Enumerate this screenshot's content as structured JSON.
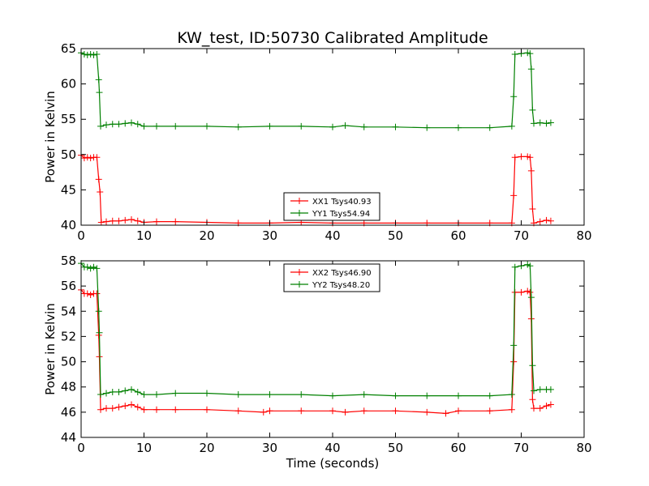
{
  "figure": {
    "title": "KW_test, ID:50730 Calibrated Amplitude"
  },
  "chart_data": [
    {
      "type": "line",
      "xlabel": "",
      "ylabel": "Power in Kelvin",
      "xlim": [
        0,
        80
      ],
      "ylim": [
        40,
        65
      ],
      "xticks": [
        0,
        10,
        20,
        30,
        40,
        50,
        60,
        70,
        80
      ],
      "yticks": [
        40,
        45,
        50,
        55,
        60,
        65
      ],
      "legend_position": "lower-center",
      "series": [
        {
          "name": "XX1 Tsys40.93",
          "color": "#ff0000",
          "points": [
            [
              0.0,
              49.9
            ],
            [
              0.5,
              49.5
            ],
            [
              1.0,
              49.6
            ],
            [
              1.5,
              49.5
            ],
            [
              2.0,
              49.6
            ],
            [
              2.5,
              49.6
            ],
            [
              2.8,
              46.5
            ],
            [
              3.0,
              44.7
            ],
            [
              3.2,
              40.4
            ],
            [
              4,
              40.5
            ],
            [
              5,
              40.6
            ],
            [
              6,
              40.6
            ],
            [
              7,
              40.7
            ],
            [
              8,
              40.8
            ],
            [
              9,
              40.6
            ],
            [
              10,
              40.4
            ],
            [
              12,
              40.5
            ],
            [
              15,
              40.5
            ],
            [
              20,
              40.4
            ],
            [
              25,
              40.3
            ],
            [
              30,
              40.3
            ],
            [
              35,
              40.4
            ],
            [
              40,
              40.3
            ],
            [
              45,
              40.3
            ],
            [
              50,
              40.3
            ],
            [
              55,
              40.3
            ],
            [
              60,
              40.3
            ],
            [
              65,
              40.3
            ],
            [
              68.5,
              40.3
            ],
            [
              68.8,
              44.2
            ],
            [
              69.0,
              49.6
            ],
            [
              70,
              49.7
            ],
            [
              71,
              49.7
            ],
            [
              71.4,
              49.6
            ],
            [
              71.6,
              47.7
            ],
            [
              71.8,
              42.3
            ],
            [
              72.0,
              40.3
            ],
            [
              73,
              40.5
            ],
            [
              74,
              40.7
            ],
            [
              74.7,
              40.6
            ]
          ]
        },
        {
          "name": "YY1 Tsys54.94",
          "color": "#008000",
          "points": [
            [
              0.0,
              64.4
            ],
            [
              0.5,
              64.2
            ],
            [
              1.0,
              64.1
            ],
            [
              1.5,
              64.2
            ],
            [
              2.0,
              64.1
            ],
            [
              2.5,
              64.2
            ],
            [
              2.8,
              60.6
            ],
            [
              2.9,
              58.8
            ],
            [
              3.1,
              54.0
            ],
            [
              4,
              54.2
            ],
            [
              5,
              54.3
            ],
            [
              6,
              54.3
            ],
            [
              7,
              54.4
            ],
            [
              8,
              54.5
            ],
            [
              9,
              54.3
            ],
            [
              10,
              54.0
            ],
            [
              12,
              54.0
            ],
            [
              15,
              54.0
            ],
            [
              20,
              54.0
            ],
            [
              25,
              53.9
            ],
            [
              30,
              54.0
            ],
            [
              35,
              54.0
            ],
            [
              40,
              53.9
            ],
            [
              42,
              54.1
            ],
            [
              45,
              53.9
            ],
            [
              50,
              53.9
            ],
            [
              55,
              53.8
            ],
            [
              60,
              53.8
            ],
            [
              65,
              53.8
            ],
            [
              68.5,
              54.0
            ],
            [
              68.8,
              58.2
            ],
            [
              69.0,
              64.2
            ],
            [
              70,
              64.3
            ],
            [
              71,
              64.4
            ],
            [
              71.4,
              64.3
            ],
            [
              71.6,
              62.1
            ],
            [
              71.8,
              56.3
            ],
            [
              72.0,
              54.4
            ],
            [
              73,
              54.5
            ],
            [
              74,
              54.4
            ],
            [
              74.7,
              54.5
            ]
          ]
        }
      ]
    },
    {
      "type": "line",
      "xlabel": "Time (seconds)",
      "ylabel": "Power in Kelvin",
      "xlim": [
        0,
        80
      ],
      "ylim": [
        44,
        58
      ],
      "xticks": [
        0,
        10,
        20,
        30,
        40,
        50,
        60,
        70,
        80
      ],
      "yticks": [
        44,
        46,
        48,
        50,
        52,
        54,
        56,
        58
      ],
      "legend_position": "upper-center",
      "series": [
        {
          "name": "XX2 Tsys46.90",
          "color": "#ff0000",
          "points": [
            [
              0.0,
              55.7
            ],
            [
              0.5,
              55.4
            ],
            [
              1.0,
              55.4
            ],
            [
              1.5,
              55.3
            ],
            [
              2.0,
              55.4
            ],
            [
              2.5,
              55.4
            ],
            [
              2.8,
              52.1
            ],
            [
              2.9,
              50.4
            ],
            [
              3.1,
              46.2
            ],
            [
              4,
              46.3
            ],
            [
              5,
              46.3
            ],
            [
              6,
              46.4
            ],
            [
              7,
              46.5
            ],
            [
              8,
              46.6
            ],
            [
              9,
              46.4
            ],
            [
              10,
              46.2
            ],
            [
              12,
              46.2
            ],
            [
              15,
              46.2
            ],
            [
              20,
              46.2
            ],
            [
              25,
              46.1
            ],
            [
              29,
              46.0
            ],
            [
              30,
              46.1
            ],
            [
              35,
              46.1
            ],
            [
              40,
              46.1
            ],
            [
              42,
              46.0
            ],
            [
              45,
              46.1
            ],
            [
              50,
              46.1
            ],
            [
              55,
              46.0
            ],
            [
              58,
              45.9
            ],
            [
              60,
              46.1
            ],
            [
              65,
              46.1
            ],
            [
              68.5,
              46.2
            ],
            [
              68.8,
              50.0
            ],
            [
              69.0,
              55.5
            ],
            [
              70,
              55.5
            ],
            [
              71,
              55.6
            ],
            [
              71.4,
              55.5
            ],
            [
              71.6,
              53.4
            ],
            [
              71.8,
              47.0
            ],
            [
              72.0,
              46.3
            ],
            [
              73,
              46.3
            ],
            [
              74,
              46.5
            ],
            [
              74.7,
              46.6
            ]
          ]
        },
        {
          "name": "YY2 Tsys48.20",
          "color": "#008000",
          "points": [
            [
              0.0,
              57.8
            ],
            [
              0.5,
              57.5
            ],
            [
              1.0,
              57.5
            ],
            [
              1.5,
              57.4
            ],
            [
              2.0,
              57.5
            ],
            [
              2.5,
              57.4
            ],
            [
              2.8,
              54.0
            ],
            [
              2.9,
              52.3
            ],
            [
              3.1,
              47.4
            ],
            [
              4,
              47.5
            ],
            [
              5,
              47.6
            ],
            [
              6,
              47.6
            ],
            [
              7,
              47.7
            ],
            [
              8,
              47.8
            ],
            [
              9,
              47.6
            ],
            [
              10,
              47.4
            ],
            [
              12,
              47.4
            ],
            [
              15,
              47.5
            ],
            [
              20,
              47.5
            ],
            [
              25,
              47.4
            ],
            [
              30,
              47.4
            ],
            [
              35,
              47.4
            ],
            [
              40,
              47.3
            ],
            [
              45,
              47.4
            ],
            [
              50,
              47.3
            ],
            [
              55,
              47.3
            ],
            [
              60,
              47.3
            ],
            [
              65,
              47.3
            ],
            [
              68.5,
              47.4
            ],
            [
              68.8,
              51.3
            ],
            [
              69.0,
              57.5
            ],
            [
              70,
              57.6
            ],
            [
              71,
              57.7
            ],
            [
              71.4,
              57.6
            ],
            [
              71.6,
              55.1
            ],
            [
              71.8,
              49.7
            ],
            [
              72.0,
              47.7
            ],
            [
              73,
              47.8
            ],
            [
              74,
              47.8
            ],
            [
              74.7,
              47.8
            ]
          ]
        }
      ]
    }
  ]
}
